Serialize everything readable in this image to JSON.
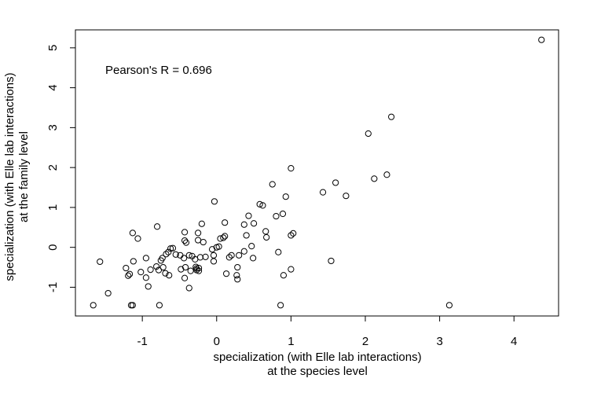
{
  "chart_data": {
    "type": "scatter",
    "title": "",
    "xlabel_lines": [
      "specialization (with Elle lab interactions)",
      "at the species level"
    ],
    "ylabel_lines": [
      "specialization (with Elle lab interactions)",
      "at the family level"
    ],
    "annotation": "Pearson's R = 0.696",
    "xlim": [
      -1.9,
      4.6
    ],
    "ylim": [
      -1.72,
      5.45
    ],
    "xticks": [
      -1,
      0,
      1,
      2,
      3,
      4
    ],
    "xtick_labels": [
      "-1",
      "0",
      "1",
      "2",
      "3",
      "4"
    ],
    "yticks": [
      -1,
      0,
      1,
      2,
      3,
      4,
      5
    ],
    "ytick_labels": [
      "-1",
      "0",
      "1",
      "2",
      "3",
      "4",
      "5"
    ],
    "grid": false,
    "legend": "none",
    "marker": "open-circle",
    "points": [
      [
        4.37,
        5.2
      ],
      [
        2.35,
        3.27
      ],
      [
        2.04,
        2.85
      ],
      [
        1.0,
        1.98
      ],
      [
        2.29,
        1.82
      ],
      [
        2.12,
        1.72
      ],
      [
        1.6,
        1.62
      ],
      [
        0.75,
        1.58
      ],
      [
        1.43,
        1.38
      ],
      [
        1.74,
        1.29
      ],
      [
        0.93,
        1.27
      ],
      [
        -0.03,
        1.15
      ],
      [
        0.58,
        1.08
      ],
      [
        0.62,
        1.05
      ],
      [
        0.89,
        0.84
      ],
      [
        0.8,
        0.78
      ],
      [
        0.43,
        0.79
      ],
      [
        0.37,
        0.57
      ],
      [
        0.5,
        0.6
      ],
      [
        0.11,
        0.62
      ],
      [
        -0.2,
        0.59
      ],
      [
        -0.8,
        0.52
      ],
      [
        -1.13,
        0.36
      ],
      [
        -1.06,
        0.22
      ],
      [
        -0.43,
        0.38
      ],
      [
        -0.25,
        0.36
      ],
      [
        0.66,
        0.4
      ],
      [
        0.4,
        0.3
      ],
      [
        0.67,
        0.25
      ],
      [
        1.0,
        0.3
      ],
      [
        1.03,
        0.35
      ],
      [
        0.11,
        0.28
      ],
      [
        0.09,
        0.24
      ],
      [
        0.05,
        0.22
      ],
      [
        -0.25,
        0.18
      ],
      [
        -0.43,
        0.17
      ],
      [
        -0.41,
        0.12
      ],
      [
        -0.18,
        0.13
      ],
      [
        0.0,
        0.0
      ],
      [
        0.03,
        0.02
      ],
      [
        -0.06,
        -0.05
      ],
      [
        0.47,
        0.03
      ],
      [
        0.37,
        -0.1
      ],
      [
        0.3,
        -0.2
      ],
      [
        0.2,
        -0.2
      ],
      [
        0.17,
        -0.25
      ],
      [
        0.49,
        -0.27
      ],
      [
        0.83,
        -0.12
      ],
      [
        -0.59,
        -0.02
      ],
      [
        -0.62,
        -0.03
      ],
      [
        -0.65,
        -0.12
      ],
      [
        -0.55,
        -0.18
      ],
      [
        -0.49,
        -0.2
      ],
      [
        -0.44,
        -0.27
      ],
      [
        -0.37,
        -0.2
      ],
      [
        -0.33,
        -0.22
      ],
      [
        -0.29,
        -0.3
      ],
      [
        -0.68,
        -0.17
      ],
      [
        -0.73,
        -0.27
      ],
      [
        -0.75,
        -0.33
      ],
      [
        -0.95,
        -0.27
      ],
      [
        -1.12,
        -0.35
      ],
      [
        -1.57,
        -0.36
      ],
      [
        -0.81,
        -0.48
      ],
      [
        -0.89,
        -0.56
      ],
      [
        -0.72,
        -0.5
      ],
      [
        -0.78,
        -0.57
      ],
      [
        -1.22,
        -0.52
      ],
      [
        -1.17,
        -0.67
      ],
      [
        -1.19,
        -0.71
      ],
      [
        -1.02,
        -0.62
      ],
      [
        -0.69,
        -0.65
      ],
      [
        -0.64,
        -0.7
      ],
      [
        -0.95,
        -0.76
      ],
      [
        -0.48,
        -0.55
      ],
      [
        -0.42,
        -0.5
      ],
      [
        -0.35,
        -0.59
      ],
      [
        -0.28,
        -0.49
      ],
      [
        -0.27,
        -0.53
      ],
      [
        -0.24,
        -0.52
      ],
      [
        -0.27,
        -0.57
      ],
      [
        -0.24,
        -0.59
      ],
      [
        -0.22,
        -0.25
      ],
      [
        -0.15,
        -0.24
      ],
      [
        -0.04,
        -0.2
      ],
      [
        -0.04,
        -0.35
      ],
      [
        0.28,
        -0.5
      ],
      [
        0.27,
        -0.7
      ],
      [
        0.28,
        -0.8
      ],
      [
        0.13,
        -0.66
      ],
      [
        1.0,
        -0.55
      ],
      [
        0.9,
        -0.7
      ],
      [
        1.54,
        -0.34
      ],
      [
        -0.43,
        -0.77
      ],
      [
        -0.37,
        -1.02
      ],
      [
        -0.92,
        -0.98
      ],
      [
        -1.46,
        -1.15
      ],
      [
        -1.66,
        -1.45
      ],
      [
        -1.15,
        -1.45
      ],
      [
        -1.13,
        -1.45
      ],
      [
        -0.77,
        -1.45
      ],
      [
        0.86,
        -1.45
      ],
      [
        3.13,
        -1.45
      ]
    ]
  }
}
